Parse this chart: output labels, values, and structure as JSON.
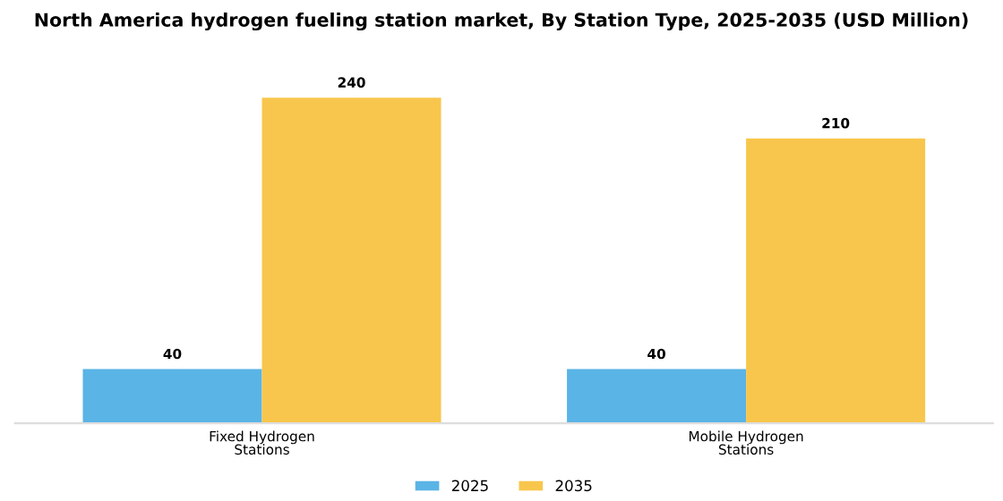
{
  "chart_data": {
    "type": "bar",
    "title": "North America hydrogen fueling station market, By Station Type, 2025-2035 (USD Million)",
    "categories": [
      "Fixed Hydrogen\nStations",
      "Mobile Hydrogen\nStations"
    ],
    "series": [
      {
        "name": "2025",
        "color": "#5ab4e6",
        "values": [
          40,
          40
        ]
      },
      {
        "name": "2035",
        "color": "#f8c64c",
        "values": [
          240,
          210
        ]
      }
    ],
    "data_labels": true,
    "legend": "bottom",
    "grid": false
  }
}
